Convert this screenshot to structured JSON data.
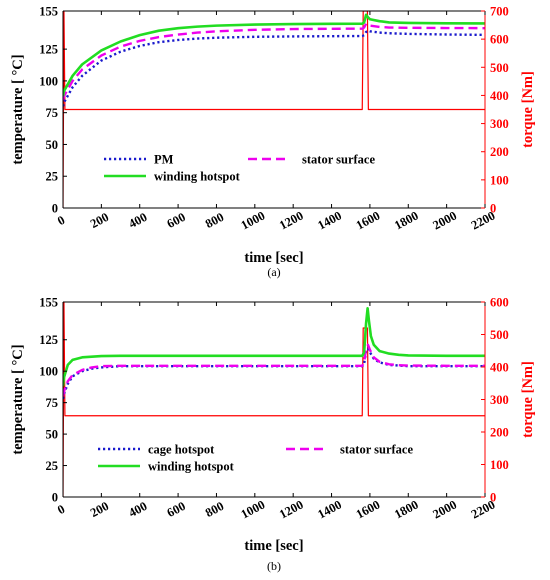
{
  "chart_data": [
    {
      "type": "line",
      "caption": "(a)",
      "xlabel": "time [sec]",
      "ylabel_left": "temperature [ °C]",
      "ylabel_right": "torque [Nm]",
      "xlim": [
        0,
        2200
      ],
      "xticks": [
        0,
        200,
        400,
        600,
        800,
        1000,
        1200,
        1400,
        1600,
        1800,
        2000,
        2200
      ],
      "ylim_left": [
        0,
        155
      ],
      "yticks_left": [
        0,
        25,
        50,
        75,
        100,
        125,
        155
      ],
      "ylim_right": [
        0,
        700
      ],
      "yticks_right": [
        0,
        100,
        200,
        300,
        400,
        500,
        600,
        700
      ],
      "grid": false,
      "legend_columns": [
        [
          "PM",
          "winding hotspot"
        ],
        [
          "stator surface"
        ]
      ],
      "colors": {
        "axis_right": "#ff0000"
      },
      "series": [
        {
          "name": "PM",
          "axis": "left",
          "color": "#1a1acc",
          "dash": "dotted",
          "x": [
            0,
            5,
            50,
            100,
            200,
            300,
            400,
            500,
            600,
            700,
            800,
            1000,
            1200,
            1400,
            1560,
            1570,
            1580,
            1590,
            1600,
            1650,
            1700,
            1800,
            2000,
            2200
          ],
          "y": [
            80,
            83,
            95,
            104,
            116,
            123,
            127.5,
            130.5,
            132.2,
            133.3,
            134,
            134.7,
            135,
            135.2,
            135.3,
            136,
            138.5,
            139.5,
            139,
            138,
            137.5,
            137,
            136.5,
            136.2
          ]
        },
        {
          "name": "stator surface",
          "axis": "left",
          "color": "#ee00ee",
          "dash": "dashed",
          "x": [
            0,
            5,
            50,
            100,
            200,
            300,
            400,
            500,
            600,
            700,
            800,
            1000,
            1200,
            1400,
            1560,
            1570,
            1580,
            1590,
            1600,
            1650,
            1700,
            1800,
            2000,
            2200
          ],
          "y": [
            85,
            88,
            100,
            109,
            120,
            127,
            131.5,
            134.5,
            136.5,
            138,
            139,
            140.2,
            140.8,
            141,
            141.1,
            142,
            145,
            144,
            143.5,
            142.5,
            142,
            141.8,
            141.6,
            141.5
          ]
        },
        {
          "name": "winding hotspot",
          "axis": "left",
          "color": "#22dd22",
          "dash": "solid",
          "x": [
            0,
            5,
            50,
            100,
            200,
            300,
            400,
            500,
            600,
            700,
            800,
            1000,
            1200,
            1400,
            1560,
            1570,
            1580,
            1590,
            1600,
            1650,
            1700,
            1800,
            2000,
            2200
          ],
          "y": [
            88,
            92,
            104,
            113,
            124,
            131,
            136,
            139.5,
            141.5,
            142.7,
            143.5,
            144.3,
            144.7,
            144.9,
            145,
            146,
            152,
            150,
            148.5,
            147,
            146,
            145.6,
            145.3,
            145.2
          ]
        },
        {
          "name": "torque",
          "axis": "right",
          "color": "#ff0000",
          "dash": "solid",
          "x": [
            0,
            5,
            10,
            1560,
            1565,
            1587,
            1592,
            2200
          ],
          "y": [
            0,
            700,
            350,
            350,
            700,
            700,
            350,
            350
          ]
        }
      ]
    },
    {
      "type": "line",
      "caption": "(b)",
      "xlabel": "time [sec]",
      "ylabel_left": "temperature [ °C]",
      "ylabel_right": "torque [Nm]",
      "xlim": [
        0,
        2200
      ],
      "xticks": [
        0,
        200,
        400,
        600,
        800,
        1000,
        1200,
        1400,
        1600,
        1800,
        2000,
        2200
      ],
      "ylim_left": [
        0,
        155
      ],
      "yticks_left": [
        0,
        25,
        50,
        75,
        100,
        125,
        155
      ],
      "ylim_right": [
        0,
        600
      ],
      "yticks_right": [
        0,
        100,
        200,
        300,
        400,
        500,
        600
      ],
      "grid": false,
      "legend_columns": [
        [
          "cage hotspot",
          "winding hotspot"
        ],
        [
          "stator surface"
        ]
      ],
      "colors": {
        "axis_right": "#ff0000"
      },
      "series": [
        {
          "name": "cage hotspot",
          "axis": "left",
          "color": "#1a1acc",
          "dash": "dotted",
          "x": [
            0,
            5,
            25,
            50,
            100,
            150,
            200,
            300,
            1000,
            1560,
            1570,
            1580,
            1590,
            1600,
            1620,
            1650,
            1700,
            1750,
            1800,
            2000,
            2200
          ],
          "y": [
            78,
            82,
            90,
            96,
            100,
            102,
            103,
            104,
            104,
            104,
            106,
            116,
            118,
            115,
            110,
            107,
            105,
            104.5,
            104,
            104,
            104
          ]
        },
        {
          "name": "stator surface",
          "axis": "left",
          "color": "#ee00ee",
          "dash": "dashed",
          "x": [
            0,
            5,
            25,
            50,
            100,
            150,
            200,
            300,
            1000,
            1560,
            1570,
            1580,
            1590,
            1600,
            1620,
            1650,
            1700,
            1750,
            1800,
            2000,
            2200
          ],
          "y": [
            80,
            84,
            92,
            97,
            101,
            103,
            104,
            104.3,
            104.3,
            104.3,
            107,
            118,
            121,
            117,
            111,
            107.5,
            105.5,
            104.8,
            104.5,
            104.3,
            104.3
          ]
        },
        {
          "name": "winding hotspot",
          "axis": "left",
          "color": "#22dd22",
          "dash": "solid",
          "x": [
            0,
            5,
            25,
            50,
            100,
            200,
            300,
            1000,
            1560,
            1570,
            1580,
            1588,
            1595,
            1605,
            1620,
            1650,
            1700,
            1750,
            1800,
            2000,
            2200
          ],
          "y": [
            88,
            95,
            105,
            109,
            111,
            112,
            112.2,
            112.2,
            112.2,
            115,
            138,
            150,
            140,
            128,
            121,
            116,
            114,
            113,
            112.5,
            112.2,
            112.2
          ]
        },
        {
          "name": "torque",
          "axis": "right",
          "color": "#ff0000",
          "dash": "solid",
          "x": [
            0,
            5,
            10,
            1560,
            1565,
            1587,
            1592,
            2200
          ],
          "y": [
            0,
            600,
            250,
            250,
            520,
            520,
            250,
            250
          ]
        }
      ]
    }
  ]
}
